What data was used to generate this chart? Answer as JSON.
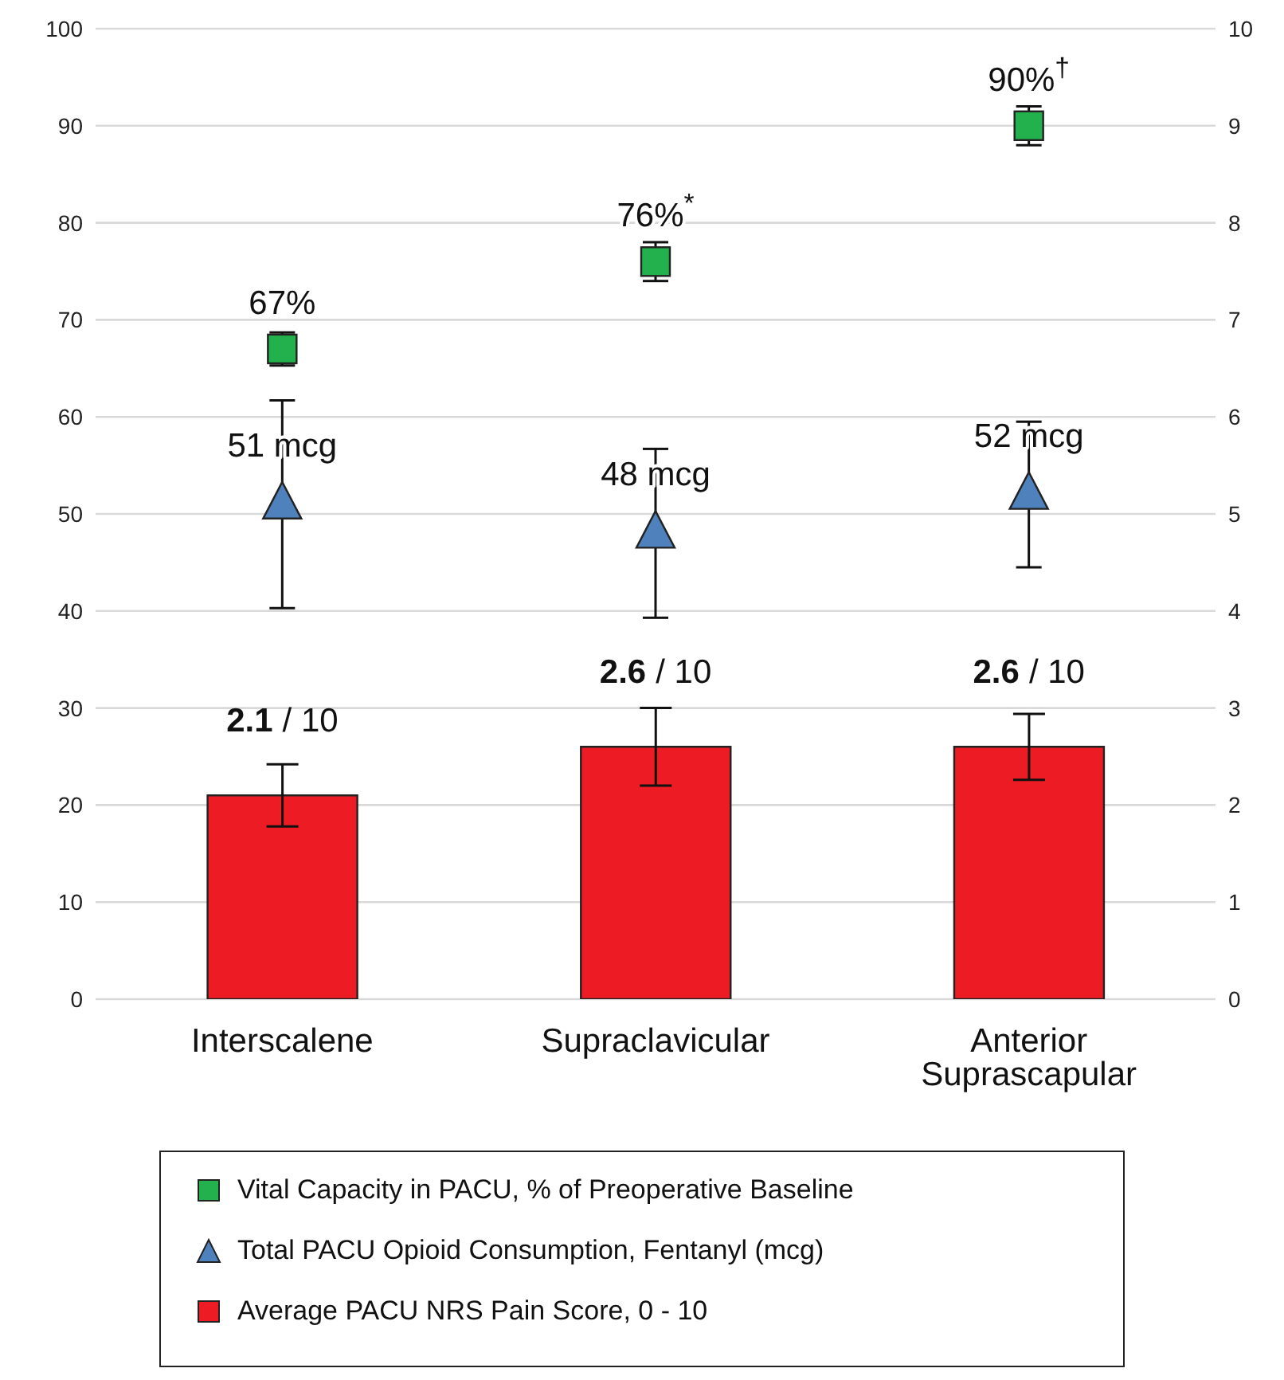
{
  "chart_data": {
    "type": "bar",
    "categories": [
      "Interscalene",
      "Supraclavicular",
      "Anterior Suprascapular"
    ],
    "series": [
      {
        "name": "Vital Capacity in PACU, % of Preoperative Baseline",
        "type": "scatter",
        "marker": "square",
        "color": "#22b14c",
        "values": [
          67,
          76,
          90
        ],
        "errors": [
          1.7,
          2,
          2
        ],
        "value_labels": [
          "67%",
          "76%$^{*}$",
          "90%$^{†}$"
        ]
      },
      {
        "name": "Total PACU Opioid Consumption, Fentanyl (mcg)",
        "type": "scatter",
        "marker": "triangle",
        "color": "#4f81bd",
        "values": [
          51,
          48,
          52
        ],
        "errors": [
          10.7,
          8.7,
          7.5
        ],
        "value_labels": [
          "51 mcg",
          "48 mcg",
          "52 mcg"
        ]
      },
      {
        "name": "Average PACU NRS Pain Score, 0 - 10",
        "axis": "y2",
        "color": "#ed1c24",
        "values": [
          2.1,
          2.6,
          2.6
        ],
        "errors": [
          0.32,
          0.4,
          0.34
        ],
        "value_labels": [
          "2.1",
          "2.6",
          "2.6"
        ]
      }
    ],
    "annotations": [
      "/ 10",
      "/ 10",
      "/ 10"
    ],
    "ylim": [
      0,
      100
    ],
    "yticks": [
      0,
      10,
      20,
      30,
      40,
      50,
      60,
      70,
      80,
      90,
      100
    ],
    "y2lim": [
      0,
      10
    ],
    "y2ticks": [
      0,
      1,
      2,
      3,
      4,
      5,
      6,
      7,
      8,
      9,
      10
    ],
    "grid": "y",
    "legend": "bottom"
  }
}
